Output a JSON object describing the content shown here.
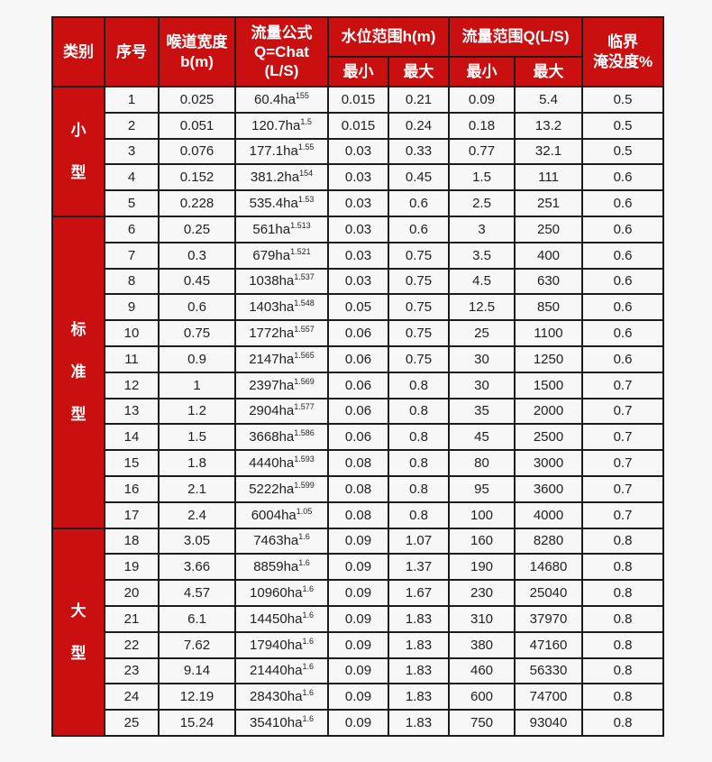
{
  "colors": {
    "header_red": "#c90f10",
    "border": "#1c1c1c",
    "cell_background": "#f7f7f7",
    "header_text": "#ffffff",
    "cell_text": "#212121"
  },
  "table": {
    "headers": {
      "category": "类别",
      "index": "序号",
      "throat_width_line1": "喉道宽度",
      "throat_width_line2": "b(m)",
      "formula_line1": "流量公式",
      "formula_line2": "Q=Chat",
      "formula_line3": "(L/S)",
      "water_level_range": "水位范围h(m)",
      "flow_range": "流量范围Q(L/S)",
      "min": "最小",
      "max": "最大",
      "critical_line1": "临界",
      "critical_line2": "淹没度%"
    },
    "groups": [
      {
        "category": "小型",
        "rows": [
          {
            "no": "1",
            "b": "0.025",
            "formula_base": "60.4ha",
            "formula_exp": "155",
            "h_min": "0.015",
            "h_max": "0.21",
            "q_min": "0.09",
            "q_max": "5.4",
            "submergence": "0.5"
          },
          {
            "no": "2",
            "b": "0.051",
            "formula_base": "120.7ha",
            "formula_exp": "1.5",
            "h_min": "0.015",
            "h_max": "0.24",
            "q_min": "0.18",
            "q_max": "13.2",
            "submergence": "0.5"
          },
          {
            "no": "3",
            "b": "0.076",
            "formula_base": "177.1ha",
            "formula_exp": "1.55",
            "h_min": "0.03",
            "h_max": "0.33",
            "q_min": "0.77",
            "q_max": "32.1",
            "submergence": "0.5"
          },
          {
            "no": "4",
            "b": "0.152",
            "formula_base": "381.2ha",
            "formula_exp": "154",
            "h_min": "0.03",
            "h_max": "0.45",
            "q_min": "1.5",
            "q_max": "111",
            "submergence": "0.6"
          },
          {
            "no": "5",
            "b": "0.228",
            "formula_base": "535.4ha",
            "formula_exp": "1.53",
            "h_min": "0.03",
            "h_max": "0.6",
            "q_min": "2.5",
            "q_max": "251",
            "submergence": "0.6"
          }
        ]
      },
      {
        "category": "标准型",
        "rows": [
          {
            "no": "6",
            "b": "0.25",
            "formula_base": "561ha",
            "formula_exp": "1.513",
            "h_min": "0.03",
            "h_max": "0.6",
            "q_min": "3",
            "q_max": "250",
            "submergence": "0.6"
          },
          {
            "no": "7",
            "b": "0.3",
            "formula_base": "679ha",
            "formula_exp": "1.521",
            "h_min": "0.03",
            "h_max": "0.75",
            "q_min": "3.5",
            "q_max": "400",
            "submergence": "0.6"
          },
          {
            "no": "8",
            "b": "0.45",
            "formula_base": "1038ha",
            "formula_exp": "1.537",
            "h_min": "0.03",
            "h_max": "0.75",
            "q_min": "4.5",
            "q_max": "630",
            "submergence": "0.6"
          },
          {
            "no": "9",
            "b": "0.6",
            "formula_base": "1403ha",
            "formula_exp": "1.548",
            "h_min": "0.05",
            "h_max": "0.75",
            "q_min": "12.5",
            "q_max": "850",
            "submergence": "0.6"
          },
          {
            "no": "10",
            "b": "0.75",
            "formula_base": "1772ha",
            "formula_exp": "1.557",
            "h_min": "0.06",
            "h_max": "0.75",
            "q_min": "25",
            "q_max": "1100",
            "submergence": "0.6"
          },
          {
            "no": "11",
            "b": "0.9",
            "formula_base": "2147ha",
            "formula_exp": "1.565",
            "h_min": "0.06",
            "h_max": "0.75",
            "q_min": "30",
            "q_max": "1250",
            "submergence": "0.6"
          },
          {
            "no": "12",
            "b": "1",
            "formula_base": "2397ha",
            "formula_exp": "1.569",
            "h_min": "0.06",
            "h_max": "0.8",
            "q_min": "30",
            "q_max": "1500",
            "submergence": "0.7"
          },
          {
            "no": "13",
            "b": "1.2",
            "formula_base": "2904ha",
            "formula_exp": "1.577",
            "h_min": "0.06",
            "h_max": "0.8",
            "q_min": "35",
            "q_max": "2000",
            "submergence": "0.7"
          },
          {
            "no": "14",
            "b": "1.5",
            "formula_base": "3668ha",
            "formula_exp": "1.586",
            "h_min": "0.06",
            "h_max": "0.8",
            "q_min": "45",
            "q_max": "2500",
            "submergence": "0.7"
          },
          {
            "no": "15",
            "b": "1.8",
            "formula_base": "4440ha",
            "formula_exp": "1.593",
            "h_min": "0.08",
            "h_max": "0.8",
            "q_min": "80",
            "q_max": "3000",
            "submergence": "0.7"
          },
          {
            "no": "16",
            "b": "2.1",
            "formula_base": "5222ha",
            "formula_exp": "1.599",
            "h_min": "0.08",
            "h_max": "0.8",
            "q_min": "95",
            "q_max": "3600",
            "submergence": "0.7"
          },
          {
            "no": "17",
            "b": "2.4",
            "formula_base": "6004ha",
            "formula_exp": "1.05",
            "h_min": "0.08",
            "h_max": "0.8",
            "q_min": "100",
            "q_max": "4000",
            "submergence": "0.7"
          }
        ]
      },
      {
        "category": "大型",
        "rows": [
          {
            "no": "18",
            "b": "3.05",
            "formula_base": "7463ha",
            "formula_exp": "1.6",
            "h_min": "0.09",
            "h_max": "1.07",
            "q_min": "160",
            "q_max": "8280",
            "submergence": "0.8"
          },
          {
            "no": "19",
            "b": "3.66",
            "formula_base": "8859ha",
            "formula_exp": "1.6",
            "h_min": "0.09",
            "h_max": "1.37",
            "q_min": "190",
            "q_max": "14680",
            "submergence": "0.8"
          },
          {
            "no": "20",
            "b": "4.57",
            "formula_base": "10960ha",
            "formula_exp": "1.6",
            "h_min": "0.09",
            "h_max": "1.67",
            "q_min": "230",
            "q_max": "25040",
            "submergence": "0.8"
          },
          {
            "no": "21",
            "b": "6.1",
            "formula_base": "14450ha",
            "formula_exp": "1.6",
            "h_min": "0.09",
            "h_max": "1.83",
            "q_min": "310",
            "q_max": "37970",
            "submergence": "0.8"
          },
          {
            "no": "22",
            "b": "7.62",
            "formula_base": "17940ha",
            "formula_exp": "1.6",
            "h_min": "0.09",
            "h_max": "1.83",
            "q_min": "380",
            "q_max": "47160",
            "submergence": "0.8"
          },
          {
            "no": "23",
            "b": "9.14",
            "formula_base": "21440ha",
            "formula_exp": "1.6",
            "h_min": "0.09",
            "h_max": "1.83",
            "q_min": "460",
            "q_max": "56330",
            "submergence": "0.8"
          },
          {
            "no": "24",
            "b": "12.19",
            "formula_base": "28430ha",
            "formula_exp": "1.6",
            "h_min": "0.09",
            "h_max": "1.83",
            "q_min": "600",
            "q_max": "74700",
            "submergence": "0.8"
          },
          {
            "no": "25",
            "b": "15.24",
            "formula_base": "35410ha",
            "formula_exp": "1.6",
            "h_min": "0.09",
            "h_max": "1.83",
            "q_min": "750",
            "q_max": "93040",
            "submergence": "0.8"
          }
        ]
      }
    ]
  }
}
